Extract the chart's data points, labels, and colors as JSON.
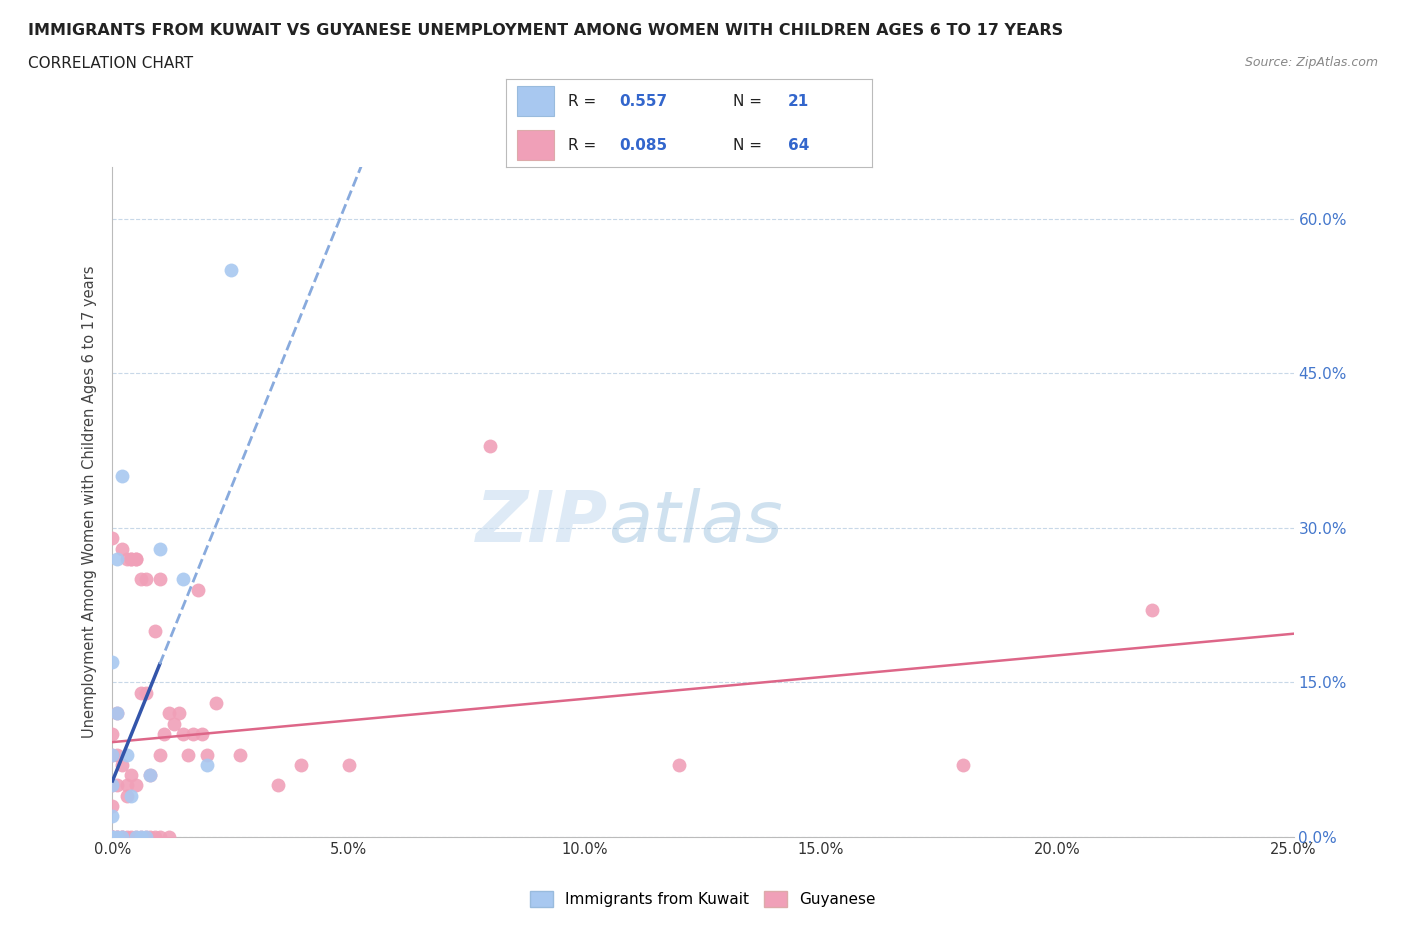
{
  "title": "IMMIGRANTS FROM KUWAIT VS GUYANESE UNEMPLOYMENT AMONG WOMEN WITH CHILDREN AGES 6 TO 17 YEARS",
  "subtitle": "CORRELATION CHART",
  "source": "Source: ZipAtlas.com",
  "ylabel": "Unemployment Among Women with Children Ages 6 to 17 years",
  "legend_label_1": "Immigrants from Kuwait",
  "legend_label_2": "Guyanese",
  "r1": 0.557,
  "n1": 21,
  "r2": 0.085,
  "n2": 64,
  "color1": "#a8c8f0",
  "color2": "#f0a0b8",
  "trendline1_solid_color": "#3355aa",
  "trendline1_dash_color": "#88aadd",
  "trendline2_color": "#dd6688",
  "xlim": [
    0.0,
    25.0
  ],
  "ylim": [
    0.0,
    65.0
  ],
  "ytick_positions": [
    0.0,
    15.0,
    30.0,
    45.0,
    60.0
  ],
  "ytick_labels": [
    "0.0%",
    "15.0%",
    "30.0%",
    "45.0%",
    "60.0%"
  ],
  "watermark_left": "ZIP",
  "watermark_right": "atlas",
  "blue_points_x": [
    0.0,
    0.0,
    0.0,
    0.0,
    0.0,
    0.0,
    0.1,
    0.1,
    0.1,
    0.2,
    0.2,
    0.3,
    0.4,
    0.5,
    0.6,
    0.7,
    0.8,
    1.0,
    1.5,
    2.0,
    2.5
  ],
  "blue_points_y": [
    0.0,
    0.0,
    2.0,
    5.0,
    8.0,
    17.0,
    0.0,
    12.0,
    27.0,
    0.0,
    35.0,
    8.0,
    4.0,
    0.0,
    0.0,
    0.0,
    6.0,
    28.0,
    25.0,
    7.0,
    55.0
  ],
  "pink_points_x": [
    0.0,
    0.0,
    0.0,
    0.0,
    0.0,
    0.0,
    0.0,
    0.0,
    0.0,
    0.0,
    0.1,
    0.1,
    0.1,
    0.1,
    0.1,
    0.2,
    0.2,
    0.2,
    0.2,
    0.3,
    0.3,
    0.3,
    0.3,
    0.4,
    0.4,
    0.4,
    0.4,
    0.5,
    0.5,
    0.5,
    0.5,
    0.6,
    0.6,
    0.6,
    0.7,
    0.7,
    0.7,
    0.8,
    0.8,
    0.9,
    0.9,
    1.0,
    1.0,
    1.0,
    1.1,
    1.2,
    1.2,
    1.3,
    1.4,
    1.5,
    1.6,
    1.7,
    1.8,
    1.9,
    2.0,
    2.2,
    2.7,
    3.5,
    4.0,
    5.0,
    8.0,
    12.0,
    18.0,
    22.0
  ],
  "pink_points_y": [
    0.0,
    0.0,
    0.0,
    0.0,
    0.0,
    3.0,
    5.0,
    8.0,
    10.0,
    29.0,
    0.0,
    0.0,
    5.0,
    8.0,
    12.0,
    0.0,
    0.0,
    7.0,
    28.0,
    0.0,
    4.0,
    5.0,
    27.0,
    0.0,
    6.0,
    27.0,
    27.0,
    0.0,
    5.0,
    27.0,
    27.0,
    0.0,
    14.0,
    25.0,
    0.0,
    14.0,
    25.0,
    0.0,
    6.0,
    0.0,
    20.0,
    0.0,
    8.0,
    25.0,
    10.0,
    0.0,
    12.0,
    11.0,
    12.0,
    10.0,
    8.0,
    10.0,
    24.0,
    10.0,
    8.0,
    13.0,
    8.0,
    5.0,
    7.0,
    7.0,
    38.0,
    7.0,
    7.0,
    22.0
  ]
}
